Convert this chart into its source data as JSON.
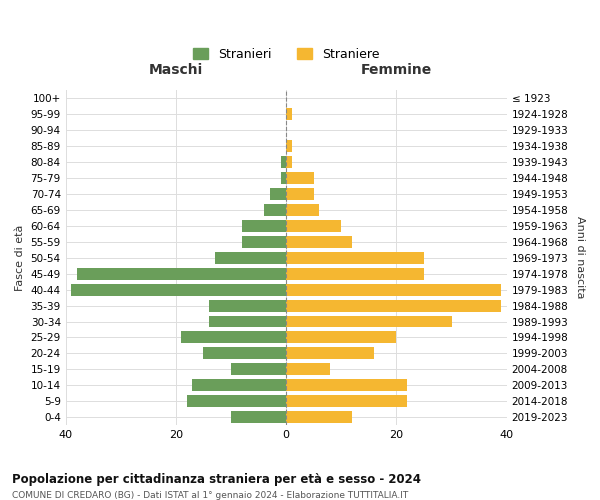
{
  "age_groups": [
    "0-4",
    "5-9",
    "10-14",
    "15-19",
    "20-24",
    "25-29",
    "30-34",
    "35-39",
    "40-44",
    "45-49",
    "50-54",
    "55-59",
    "60-64",
    "65-69",
    "70-74",
    "75-79",
    "80-84",
    "85-89",
    "90-94",
    "95-99",
    "100+"
  ],
  "birth_years": [
    "2019-2023",
    "2014-2018",
    "2009-2013",
    "2004-2008",
    "1999-2003",
    "1994-1998",
    "1989-1993",
    "1984-1988",
    "1979-1983",
    "1974-1978",
    "1969-1973",
    "1964-1968",
    "1959-1963",
    "1954-1958",
    "1949-1953",
    "1944-1948",
    "1939-1943",
    "1934-1938",
    "1929-1933",
    "1924-1928",
    "≤ 1923"
  ],
  "maschi": [
    10,
    18,
    17,
    10,
    15,
    19,
    14,
    14,
    39,
    38,
    13,
    8,
    8,
    4,
    3,
    1,
    1,
    0,
    0,
    0,
    0
  ],
  "femmine": [
    12,
    22,
    22,
    8,
    16,
    20,
    30,
    39,
    39,
    25,
    25,
    12,
    10,
    6,
    5,
    5,
    1,
    1,
    0,
    1,
    0
  ],
  "male_color": "#6a9e5a",
  "female_color": "#f5b731",
  "title": "Popolazione per cittadinanza straniera per età e sesso - 2024",
  "subtitle": "COMUNE DI CREDARO (BG) - Dati ISTAT al 1° gennaio 2024 - Elaborazione TUTTITALIA.IT",
  "ylabel_left": "Fasce di età",
  "ylabel_right": "Anni di nascita",
  "xlabel_left": "Maschi",
  "xlabel_right": "Femmine",
  "legend_stranieri": "Stranieri",
  "legend_straniere": "Straniere",
  "xlim": 40,
  "background_color": "#ffffff",
  "grid_color": "#dddddd"
}
